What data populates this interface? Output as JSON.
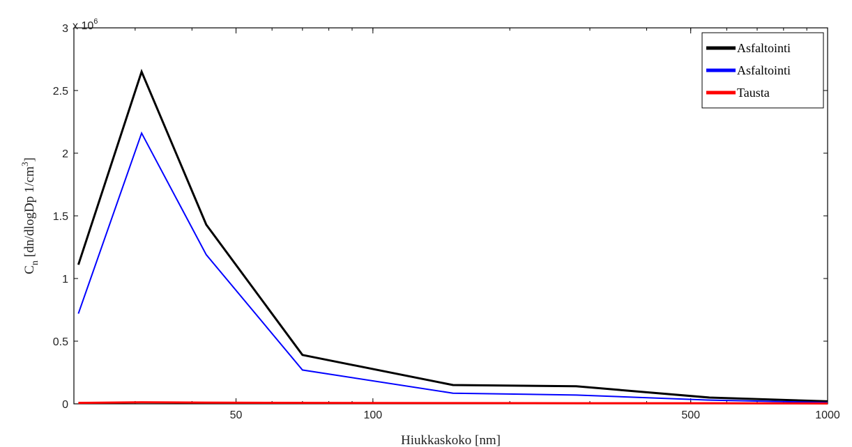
{
  "chart_data": {
    "type": "line",
    "xscale": "log",
    "xlabel": "Hiukkaskoko [nm]",
    "ylabel_main": "C",
    "ylabel_sub": "n",
    "ylabel_rest": "[dn/dlogDp 1/cm",
    "ylabel_sup": "3",
    "ylabel_close": "]",
    "y_multiplier_base": "x 10",
    "y_multiplier_exp": "6",
    "xlim": [
      22,
      1000
    ],
    "ylim": [
      0,
      3000000
    ],
    "xticks": [
      50,
      100,
      500,
      1000
    ],
    "xtick_labels": [
      "50",
      "100",
      "500",
      "1000"
    ],
    "yticks": [
      0,
      500000,
      1000000,
      1500000,
      2000000,
      2500000,
      3000000
    ],
    "ytick_labels": [
      "0",
      "0.5",
      "1",
      "1.5",
      "2",
      "2.5",
      "3"
    ],
    "grid": false,
    "legend_position": "top-right",
    "series": [
      {
        "name": "Asfaltointi",
        "color": "#000000",
        "x": [
          22.5,
          31,
          43,
          70,
          150,
          280,
          550,
          1000
        ],
        "y": [
          1110000,
          2650000,
          1430000,
          390000,
          150000,
          140000,
          50000,
          20000
        ]
      },
      {
        "name": "Asfaltointi",
        "color": "#0000ff",
        "x": [
          22.5,
          31,
          43,
          70,
          150,
          280,
          550,
          1000
        ],
        "y": [
          720000,
          2160000,
          1190000,
          270000,
          85000,
          70000,
          30000,
          10000
        ]
      },
      {
        "name": "Tausta",
        "color": "#ff0000",
        "x": [
          22.5,
          31,
          43,
          70,
          150,
          280,
          550,
          1000
        ],
        "y": [
          8000,
          12000,
          10000,
          8000,
          6000,
          5000,
          5000,
          3000
        ]
      }
    ]
  }
}
